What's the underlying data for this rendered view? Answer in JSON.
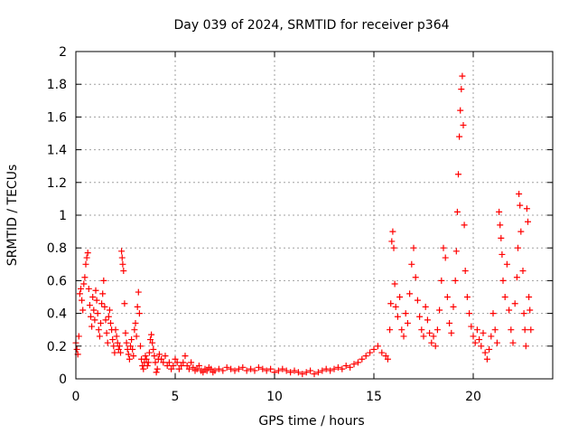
{
  "chart_data": {
    "type": "scatter",
    "title": "Day 039 of 2024, SRMTID for receiver p364",
    "xlabel": "GPS time / hours",
    "ylabel": "SRMTID / TECUs",
    "xlim": [
      0,
      24
    ],
    "ylim": [
      0,
      2
    ],
    "xticks": [
      0,
      5,
      10,
      15,
      20
    ],
    "xtick_labels": [
      "0",
      "5",
      "10",
      "15",
      "20"
    ],
    "yticks": [
      0,
      0.2,
      0.4,
      0.6,
      0.8,
      1,
      1.2,
      1.4,
      1.6,
      1.8,
      2
    ],
    "ytick_labels": [
      "0",
      "0.2",
      "0.4",
      "0.6",
      "0.8",
      "1",
      "1.2",
      "1.4",
      "1.6",
      "1.8",
      "2"
    ],
    "grid": true,
    "marker": "+",
    "color": "#ff0000",
    "series": [
      {
        "name": "SRMTID",
        "points": [
          [
            0.0,
            0.22
          ],
          [
            0.05,
            0.18
          ],
          [
            0.1,
            0.15
          ],
          [
            0.15,
            0.26
          ],
          [
            0.2,
            0.52
          ],
          [
            0.25,
            0.55
          ],
          [
            0.3,
            0.48
          ],
          [
            0.35,
            0.42
          ],
          [
            0.4,
            0.58
          ],
          [
            0.45,
            0.62
          ],
          [
            0.5,
            0.7
          ],
          [
            0.55,
            0.74
          ],
          [
            0.6,
            0.77
          ],
          [
            0.65,
            0.55
          ],
          [
            0.7,
            0.45
          ],
          [
            0.75,
            0.38
          ],
          [
            0.8,
            0.32
          ],
          [
            0.85,
            0.5
          ],
          [
            0.9,
            0.42
          ],
          [
            0.95,
            0.36
          ],
          [
            1.0,
            0.54
          ],
          [
            1.05,
            0.48
          ],
          [
            1.1,
            0.4
          ],
          [
            1.15,
            0.3
          ],
          [
            1.2,
            0.26
          ],
          [
            1.25,
            0.34
          ],
          [
            1.3,
            0.46
          ],
          [
            1.35,
            0.52
          ],
          [
            1.4,
            0.6
          ],
          [
            1.45,
            0.44
          ],
          [
            1.5,
            0.36
          ],
          [
            1.55,
            0.28
          ],
          [
            1.6,
            0.22
          ],
          [
            1.65,
            0.38
          ],
          [
            1.7,
            0.42
          ],
          [
            1.75,
            0.34
          ],
          [
            1.8,
            0.3
          ],
          [
            1.85,
            0.24
          ],
          [
            1.9,
            0.2
          ],
          [
            1.95,
            0.16
          ],
          [
            2.0,
            0.3
          ],
          [
            2.05,
            0.26
          ],
          [
            2.1,
            0.22
          ],
          [
            2.15,
            0.18
          ],
          [
            2.2,
            0.2
          ],
          [
            2.25,
            0.16
          ],
          [
            2.3,
            0.78
          ],
          [
            2.33,
            0.74
          ],
          [
            2.36,
            0.7
          ],
          [
            2.4,
            0.66
          ],
          [
            2.45,
            0.46
          ],
          [
            2.5,
            0.28
          ],
          [
            2.55,
            0.22
          ],
          [
            2.6,
            0.18
          ],
          [
            2.65,
            0.15
          ],
          [
            2.7,
            0.12
          ],
          [
            2.75,
            0.2
          ],
          [
            2.8,
            0.24
          ],
          [
            2.85,
            0.18
          ],
          [
            2.9,
            0.14
          ],
          [
            2.95,
            0.3
          ],
          [
            3.0,
            0.34
          ],
          [
            3.05,
            0.26
          ],
          [
            3.1,
            0.44
          ],
          [
            3.15,
            0.53
          ],
          [
            3.2,
            0.4
          ],
          [
            3.25,
            0.2
          ],
          [
            3.3,
            0.12
          ],
          [
            3.35,
            0.08
          ],
          [
            3.4,
            0.06
          ],
          [
            3.45,
            0.1
          ],
          [
            3.5,
            0.14
          ],
          [
            3.55,
            0.12
          ],
          [
            3.6,
            0.08
          ],
          [
            3.65,
            0.1
          ],
          [
            3.7,
            0.16
          ],
          [
            3.75,
            0.24
          ],
          [
            3.8,
            0.27
          ],
          [
            3.85,
            0.22
          ],
          [
            3.9,
            0.18
          ],
          [
            3.95,
            0.14
          ],
          [
            4.0,
            0.1
          ],
          [
            4.05,
            0.04
          ],
          [
            4.1,
            0.06
          ],
          [
            4.15,
            0.12
          ],
          [
            4.2,
            0.15
          ],
          [
            4.3,
            0.12
          ],
          [
            4.4,
            0.1
          ],
          [
            4.5,
            0.14
          ],
          [
            4.6,
            0.08
          ],
          [
            4.7,
            0.1
          ],
          [
            4.8,
            0.06
          ],
          [
            4.9,
            0.08
          ],
          [
            5.0,
            0.12
          ],
          [
            5.1,
            0.1
          ],
          [
            5.2,
            0.06
          ],
          [
            5.3,
            0.08
          ],
          [
            5.4,
            0.1
          ],
          [
            5.5,
            0.14
          ],
          [
            5.6,
            0.08
          ],
          [
            5.7,
            0.06
          ],
          [
            5.8,
            0.1
          ],
          [
            5.9,
            0.07
          ],
          [
            6.0,
            0.05
          ],
          [
            6.1,
            0.06
          ],
          [
            6.2,
            0.08
          ],
          [
            6.3,
            0.05
          ],
          [
            6.4,
            0.04
          ],
          [
            6.5,
            0.06
          ],
          [
            6.6,
            0.05
          ],
          [
            6.7,
            0.07
          ],
          [
            6.8,
            0.06
          ],
          [
            6.9,
            0.04
          ],
          [
            7.0,
            0.05
          ],
          [
            7.2,
            0.06
          ],
          [
            7.4,
            0.05
          ],
          [
            7.6,
            0.07
          ],
          [
            7.8,
            0.06
          ],
          [
            8.0,
            0.05
          ],
          [
            8.2,
            0.06
          ],
          [
            8.4,
            0.07
          ],
          [
            8.6,
            0.05
          ],
          [
            8.8,
            0.06
          ],
          [
            9.0,
            0.05
          ],
          [
            9.2,
            0.07
          ],
          [
            9.4,
            0.06
          ],
          [
            9.6,
            0.05
          ],
          [
            9.8,
            0.06
          ],
          [
            10.0,
            0.04
          ],
          [
            10.2,
            0.05
          ],
          [
            10.4,
            0.06
          ],
          [
            10.6,
            0.05
          ],
          [
            10.8,
            0.04
          ],
          [
            11.0,
            0.05
          ],
          [
            11.2,
            0.04
          ],
          [
            11.4,
            0.03
          ],
          [
            11.6,
            0.04
          ],
          [
            11.8,
            0.05
          ],
          [
            12.0,
            0.03
          ],
          [
            12.2,
            0.04
          ],
          [
            12.4,
            0.05
          ],
          [
            12.6,
            0.06
          ],
          [
            12.8,
            0.05
          ],
          [
            13.0,
            0.06
          ],
          [
            13.2,
            0.07
          ],
          [
            13.4,
            0.06
          ],
          [
            13.6,
            0.08
          ],
          [
            13.8,
            0.07
          ],
          [
            14.0,
            0.09
          ],
          [
            14.2,
            0.1
          ],
          [
            14.4,
            0.12
          ],
          [
            14.6,
            0.14
          ],
          [
            14.8,
            0.16
          ],
          [
            15.0,
            0.18
          ],
          [
            15.2,
            0.2
          ],
          [
            15.4,
            0.16
          ],
          [
            15.6,
            0.14
          ],
          [
            15.7,
            0.12
          ],
          [
            15.8,
            0.3
          ],
          [
            15.85,
            0.46
          ],
          [
            15.9,
            0.84
          ],
          [
            15.95,
            0.9
          ],
          [
            16.0,
            0.8
          ],
          [
            16.05,
            0.58
          ],
          [
            16.1,
            0.44
          ],
          [
            16.2,
            0.38
          ],
          [
            16.3,
            0.5
          ],
          [
            16.4,
            0.3
          ],
          [
            16.5,
            0.26
          ],
          [
            16.6,
            0.4
          ],
          [
            16.7,
            0.34
          ],
          [
            16.8,
            0.52
          ],
          [
            16.9,
            0.7
          ],
          [
            17.0,
            0.8
          ],
          [
            17.1,
            0.62
          ],
          [
            17.2,
            0.48
          ],
          [
            17.3,
            0.38
          ],
          [
            17.4,
            0.3
          ],
          [
            17.5,
            0.26
          ],
          [
            17.6,
            0.44
          ],
          [
            17.7,
            0.36
          ],
          [
            17.8,
            0.28
          ],
          [
            17.9,
            0.22
          ],
          [
            18.0,
            0.26
          ],
          [
            18.1,
            0.2
          ],
          [
            18.2,
            0.3
          ],
          [
            18.3,
            0.42
          ],
          [
            18.4,
            0.6
          ],
          [
            18.5,
            0.8
          ],
          [
            18.6,
            0.74
          ],
          [
            18.7,
            0.5
          ],
          [
            18.8,
            0.34
          ],
          [
            18.9,
            0.28
          ],
          [
            19.0,
            0.44
          ],
          [
            19.1,
            0.6
          ],
          [
            19.15,
            0.78
          ],
          [
            19.2,
            1.02
          ],
          [
            19.25,
            1.25
          ],
          [
            19.3,
            1.48
          ],
          [
            19.35,
            1.64
          ],
          [
            19.4,
            1.77
          ],
          [
            19.45,
            1.85
          ],
          [
            19.5,
            1.55
          ],
          [
            19.55,
            0.94
          ],
          [
            19.6,
            0.66
          ],
          [
            19.7,
            0.5
          ],
          [
            19.8,
            0.4
          ],
          [
            19.9,
            0.32
          ],
          [
            20.0,
            0.26
          ],
          [
            20.1,
            0.22
          ],
          [
            20.2,
            0.3
          ],
          [
            20.3,
            0.24
          ],
          [
            20.4,
            0.2
          ],
          [
            20.5,
            0.28
          ],
          [
            20.6,
            0.16
          ],
          [
            20.7,
            0.12
          ],
          [
            20.8,
            0.18
          ],
          [
            20.9,
            0.26
          ],
          [
            21.0,
            0.4
          ],
          [
            21.1,
            0.3
          ],
          [
            21.2,
            0.22
          ],
          [
            21.3,
            1.02
          ],
          [
            21.35,
            0.94
          ],
          [
            21.4,
            0.86
          ],
          [
            21.45,
            0.76
          ],
          [
            21.5,
            0.6
          ],
          [
            21.6,
            0.5
          ],
          [
            21.7,
            0.7
          ],
          [
            21.8,
            0.42
          ],
          [
            21.9,
            0.3
          ],
          [
            22.0,
            0.22
          ],
          [
            22.1,
            0.46
          ],
          [
            22.2,
            0.62
          ],
          [
            22.25,
            0.8
          ],
          [
            22.3,
            1.13
          ],
          [
            22.35,
            1.06
          ],
          [
            22.4,
            0.9
          ],
          [
            22.5,
            0.66
          ],
          [
            22.55,
            0.4
          ],
          [
            22.6,
            0.3
          ],
          [
            22.65,
            0.2
          ],
          [
            22.7,
            1.04
          ],
          [
            22.75,
            0.96
          ],
          [
            22.8,
            0.5
          ],
          [
            22.85,
            0.42
          ],
          [
            22.9,
            0.3
          ]
        ]
      }
    ]
  }
}
